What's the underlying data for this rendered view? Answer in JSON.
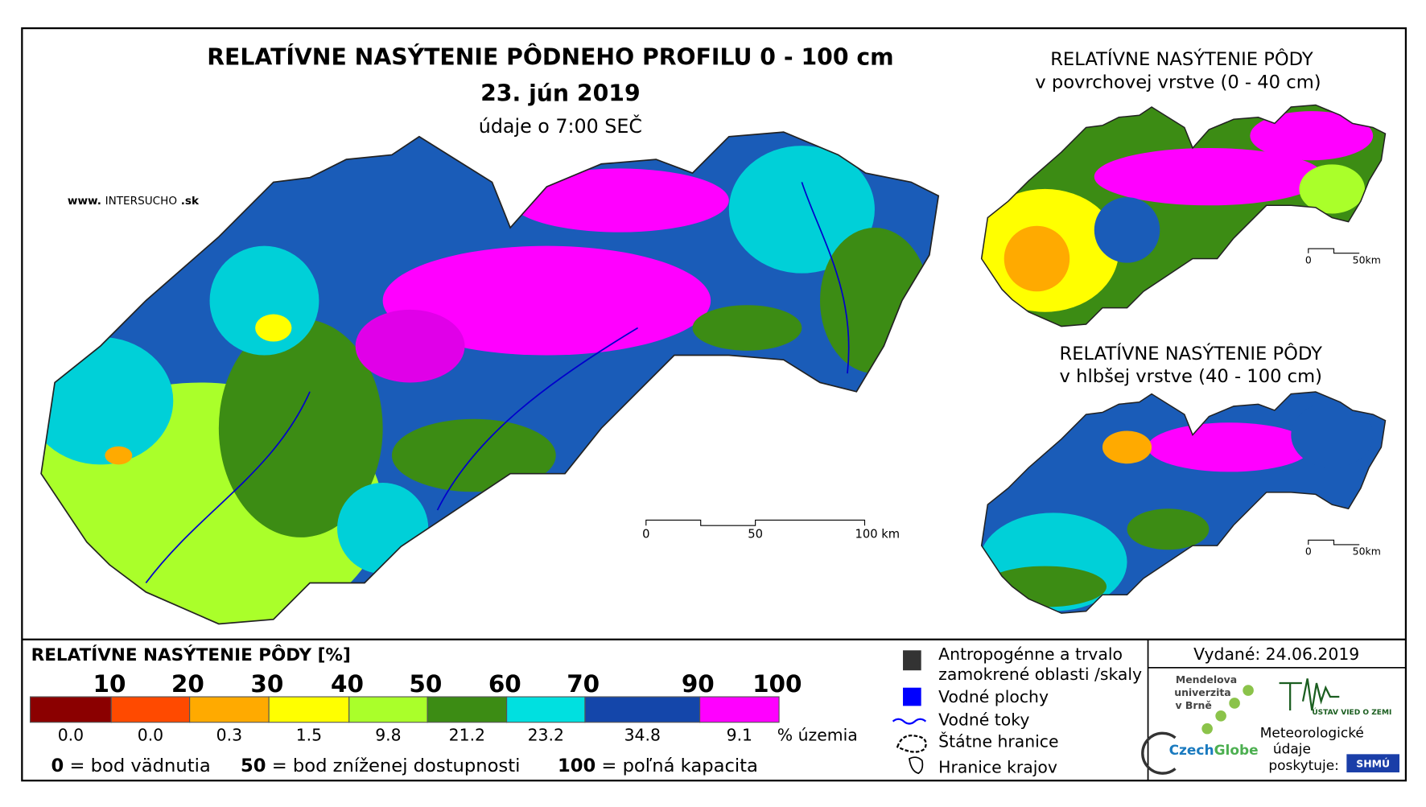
{
  "header": {
    "title": "RELATÍVNE NASÝTENIE PÔDNEHO PROFILU 0 - 100 cm",
    "date": "23. jún 2019",
    "time": "údaje o 7:00 SEČ",
    "website": {
      "prefix": "www.",
      "name1": "INTER",
      "name2": "SUCHO",
      "suffix": ".sk"
    }
  },
  "main_scale": {
    "labels": [
      "0",
      "50",
      "100 km"
    ]
  },
  "insets": [
    {
      "title": "RELATÍVNE NASÝTENIE PÔDY",
      "subtitle": "v povrchovej vrstve (0 - 40 cm)",
      "scale": [
        "0",
        "50km"
      ]
    },
    {
      "title": "RELATÍVNE NASÝTENIE PÔDY",
      "subtitle": "v hlbšej vrstve (40 - 100 cm)",
      "scale": [
        "0",
        "50km"
      ]
    }
  ],
  "legend": {
    "title": "RELATÍVNE NASÝTENIE PÔDY [%]",
    "thresholds": [
      10,
      20,
      30,
      40,
      50,
      60,
      70,
      90,
      100
    ],
    "shares": [
      "0.0",
      "0.0",
      "0.3",
      "1.5",
      "9.8",
      "21.2",
      "23.2",
      "34.8",
      "9.1"
    ],
    "shares_unit": "% územia",
    "colors": [
      "#8b0000",
      "#ff4a00",
      "#ffaa00",
      "#ffff00",
      "#aaff2a",
      "#3c8c14",
      "#00e0e0",
      "#1446aa",
      "#ff00ff"
    ],
    "notes": [
      {
        "key": "0",
        "text": "= bod vädnutia"
      },
      {
        "key": "50",
        "text": "= bod zníženej dostupnosti"
      },
      {
        "key": "100",
        "text": "= poľná kapacita"
      }
    ]
  },
  "symbols": [
    "Antropogénne a trvalo",
    "zamokrené oblasti /skaly",
    "Vodné plochy",
    "Vodné toky",
    "Štátne hranice",
    "Hranice krajov"
  ],
  "footer": {
    "issued": "Vydané: 24.06.2019",
    "logos": {
      "mendel": [
        "Mendelova",
        "univerzita",
        "v Brně"
      ],
      "czechglobe1": "Czech",
      "czechglobe2": "Globe",
      "uvz": "ÚSTAV VIED O ZEMI",
      "meteo": [
        "Meteorologické",
        "údaje",
        "poskytuje:"
      ],
      "shmu": "SHMÚ"
    }
  }
}
